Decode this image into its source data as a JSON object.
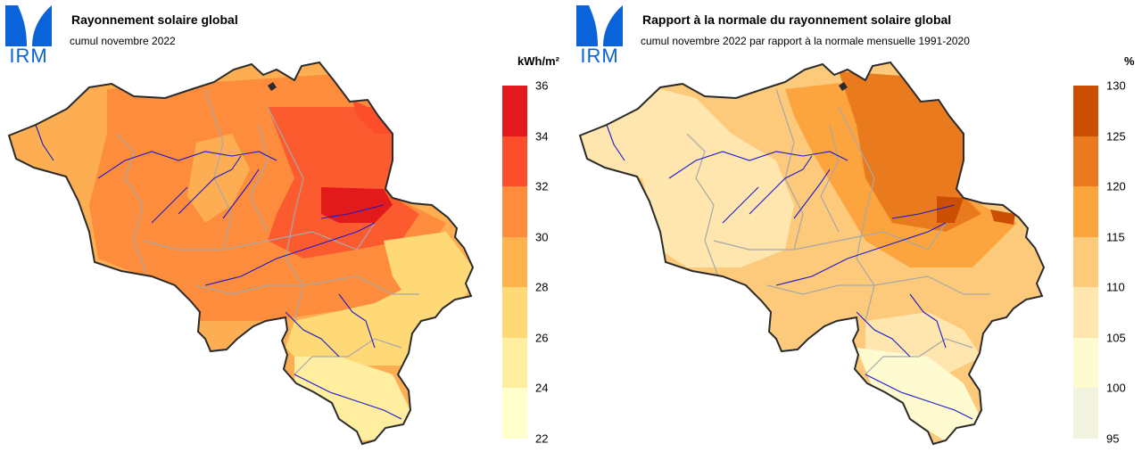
{
  "maps": [
    {
      "logo_text": "IRM",
      "title": "Rayonnement solaire global",
      "subtitle": "cumul novembre 2022",
      "unit": "kWh/m²",
      "legend_bands": [
        {
          "min": 22,
          "max": 24,
          "color": "#ffffcc"
        },
        {
          "min": 24,
          "max": 26,
          "color": "#ffeda0"
        },
        {
          "min": 26,
          "max": 28,
          "color": "#fed976"
        },
        {
          "min": 28,
          "max": 30,
          "color": "#feb24c"
        },
        {
          "min": 30,
          "max": 32,
          "color": "#fd8d3c"
        },
        {
          "min": 32,
          "max": 34,
          "color": "#fc4e2a"
        },
        {
          "min": 34,
          "max": 36,
          "color": "#e31a1c"
        }
      ],
      "ticks": [
        "36",
        "34",
        "32",
        "30",
        "28",
        "26",
        "24",
        "22"
      ]
    },
    {
      "logo_text": "IRM",
      "title": "Rapport à la normale du rayonnement solaire global",
      "subtitle": "cumul novembre 2022 par rapport à la normale mensuelle 1991-2020",
      "unit": "%",
      "legend_bands": [
        {
          "min": 95,
          "max": 100,
          "color": "#f3f4e0"
        },
        {
          "min": 100,
          "max": 105,
          "color": "#fffbd1"
        },
        {
          "min": 105,
          "max": 110,
          "color": "#fee6ae"
        },
        {
          "min": 110,
          "max": 115,
          "color": "#fdc97a"
        },
        {
          "min": 115,
          "max": 120,
          "color": "#fca43e"
        },
        {
          "min": 120,
          "max": 125,
          "color": "#e97a1e"
        },
        {
          "min": 125,
          "max": 130,
          "color": "#cc4e03"
        }
      ],
      "ticks": [
        "130",
        "125",
        "120",
        "115",
        "110",
        "105",
        "100",
        "95"
      ]
    }
  ]
}
